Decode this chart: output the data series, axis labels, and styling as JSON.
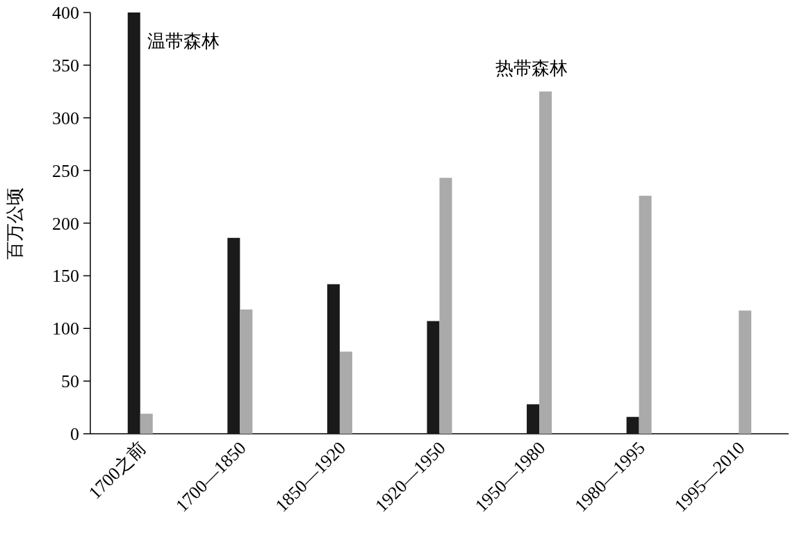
{
  "chart_data": {
    "type": "bar",
    "ylabel": "百万公顷",
    "categories": [
      "1700之前",
      "1700—1850",
      "1850—1920",
      "1920—1950",
      "1950—1980",
      "1980—1995",
      "1995—2010"
    ],
    "series": [
      {
        "name": "温带森林",
        "color": "#1a1a1a",
        "values": [
          400,
          186,
          142,
          107,
          28,
          16,
          null
        ]
      },
      {
        "name": "热带森林",
        "color": "#aaaaaa",
        "values": [
          19,
          118,
          78,
          243,
          325,
          226,
          117
        ]
      }
    ],
    "ylim": [
      0,
      400
    ],
    "yticks": [
      0,
      50,
      100,
      150,
      200,
      250,
      300,
      350,
      400
    ],
    "grid": false,
    "legend": false
  }
}
